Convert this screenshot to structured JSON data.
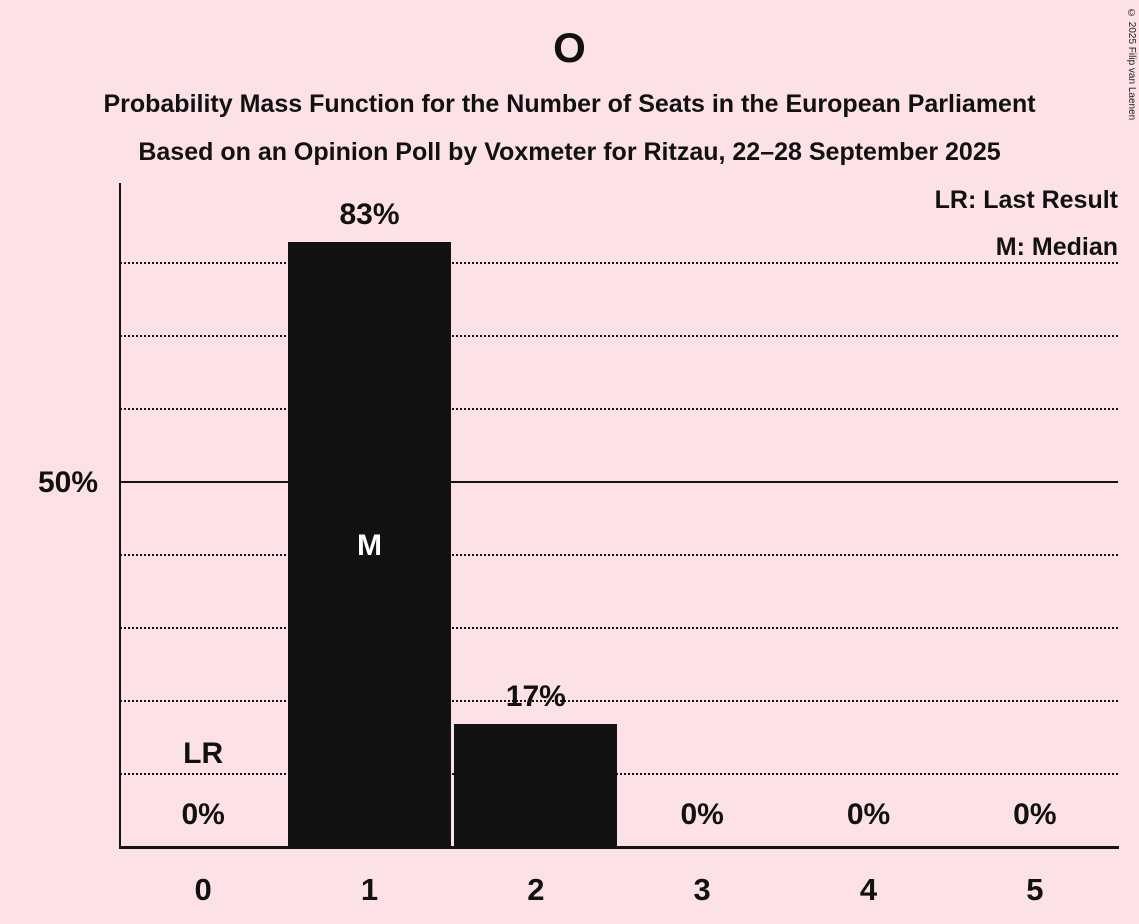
{
  "header": {
    "title": "O",
    "subtitle1": "Probability Mass Function for the Number of Seats in the European Parliament",
    "subtitle2": "Based on an Opinion Poll by Voxmeter for Ritzau, 22–28 September 2025"
  },
  "legend": {
    "lr_label": "LR: Last Result",
    "m_label": "M: Median"
  },
  "copyright": "© 2025 Filip van Laenen",
  "axis": {
    "y_tick_label": "50%"
  },
  "colors": {
    "background": "#fce1e6",
    "bar": "#121212",
    "text": "#111111"
  },
  "chart_data": {
    "type": "bar",
    "title": "O",
    "categories": [
      "0",
      "1",
      "2",
      "3",
      "4",
      "5"
    ],
    "values": [
      0,
      83,
      17,
      0,
      0,
      0
    ],
    "value_labels": [
      "0%",
      "83%",
      "17%",
      "0%",
      "0%",
      "0%"
    ],
    "xlabel": "Number of Seats",
    "ylabel": "Probability Mass",
    "ylim": [
      0,
      91
    ],
    "y_tick_shown": 50,
    "gridlines_dotted": [
      10,
      20,
      30,
      40,
      60,
      70,
      80
    ],
    "gridline_solid": 50,
    "median_category": "1",
    "median_label": "M",
    "last_result_category": "0",
    "last_result_label": "LR",
    "legend_position": "top-right",
    "grid": "horizontal-only"
  }
}
